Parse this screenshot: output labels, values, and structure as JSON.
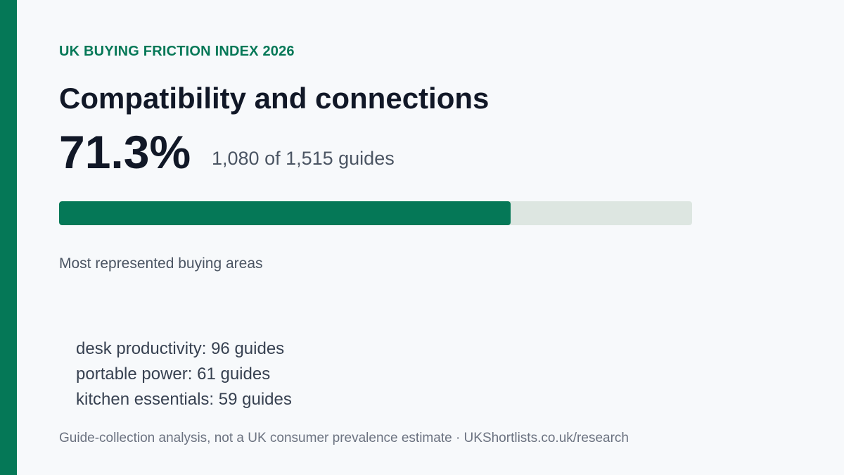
{
  "eyebrow": "UK BUYING FRICTION INDEX 2026",
  "title": "Compatibility and connections",
  "stat": {
    "percent_label": "71.3%",
    "detail": "1,080 of 1,515 guides",
    "fraction": 0.713
  },
  "section_label": "Most represented buying areas",
  "areas": [
    "desk productivity: 96 guides",
    "portable power: 61 guides",
    "kitchen essentials: 59 guides"
  ],
  "footer": "Guide-collection analysis, not a UK consumer prevalence estimate · UKShortlists.co.uk/research",
  "colors": {
    "accent": "#057857",
    "track": "#dde6e1",
    "background": "#f7f9fb"
  }
}
